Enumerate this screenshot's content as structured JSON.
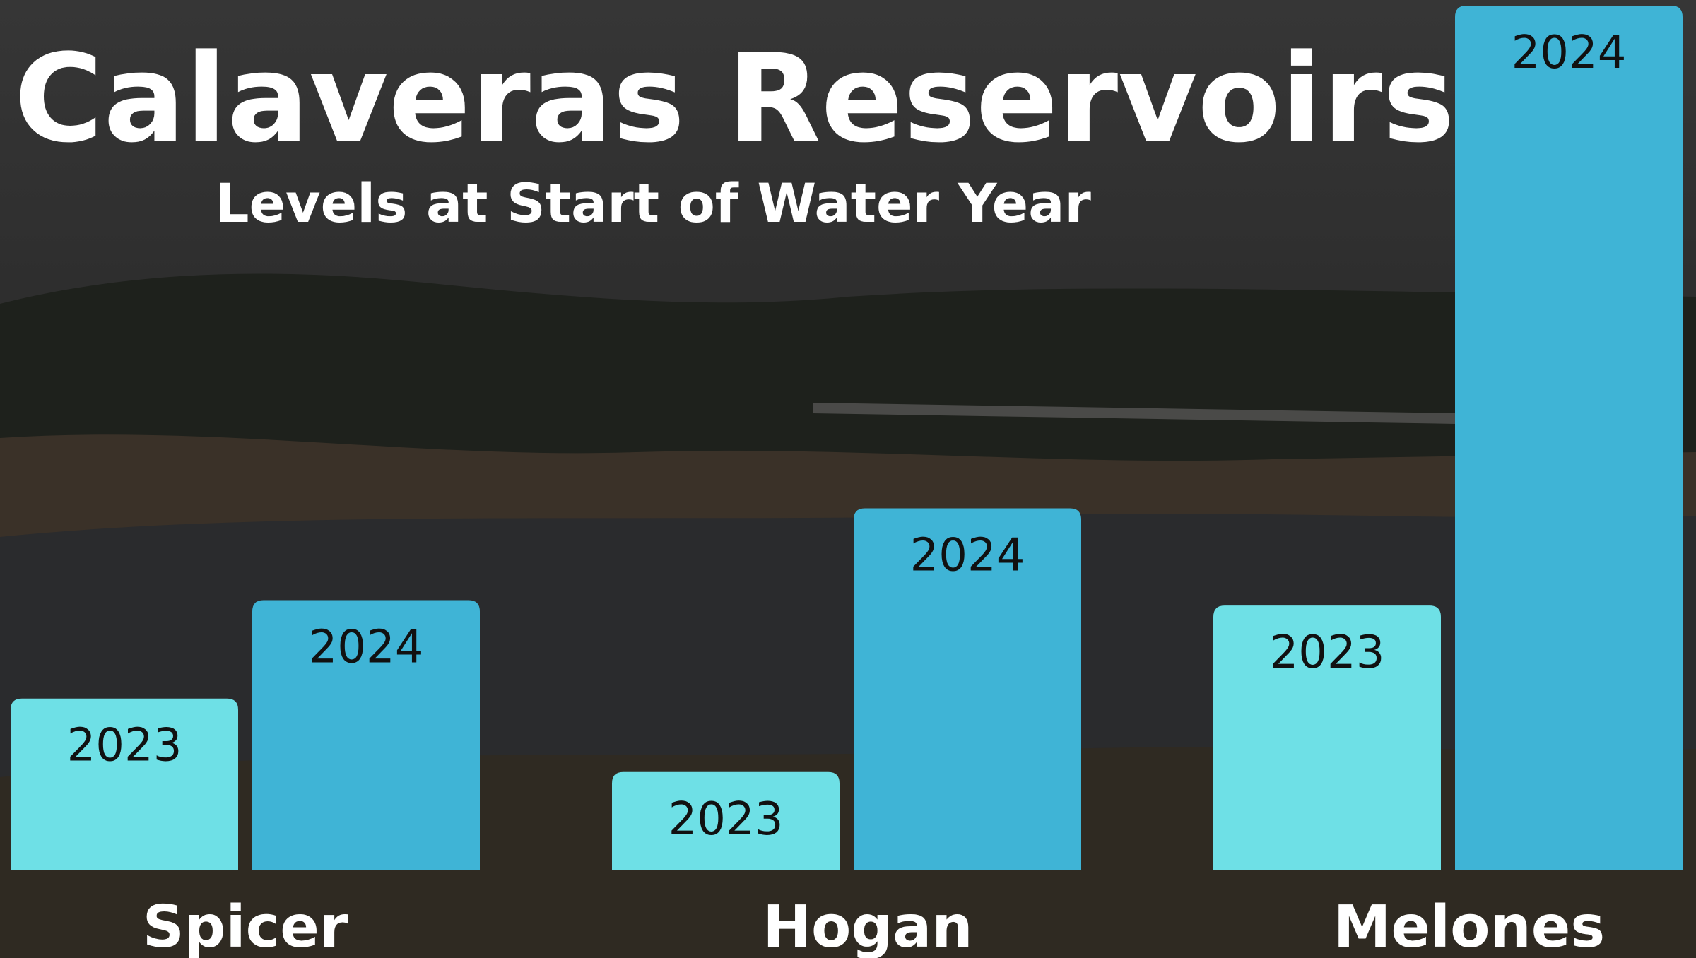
{
  "chart_data": {
    "type": "bar",
    "title": "Calaveras Reservoirs",
    "subtitle": "Levels at Start of Water Year",
    "categories": [
      "Spicer",
      "Hogan",
      "Melones"
    ],
    "series": [
      {
        "name": "2023",
        "color": "#6ee0e6",
        "values": [
          159,
          91,
          245
        ]
      },
      {
        "name": "2024",
        "color": "#3fb4d6",
        "values": [
          250,
          335,
          800
        ]
      }
    ]
  }
}
